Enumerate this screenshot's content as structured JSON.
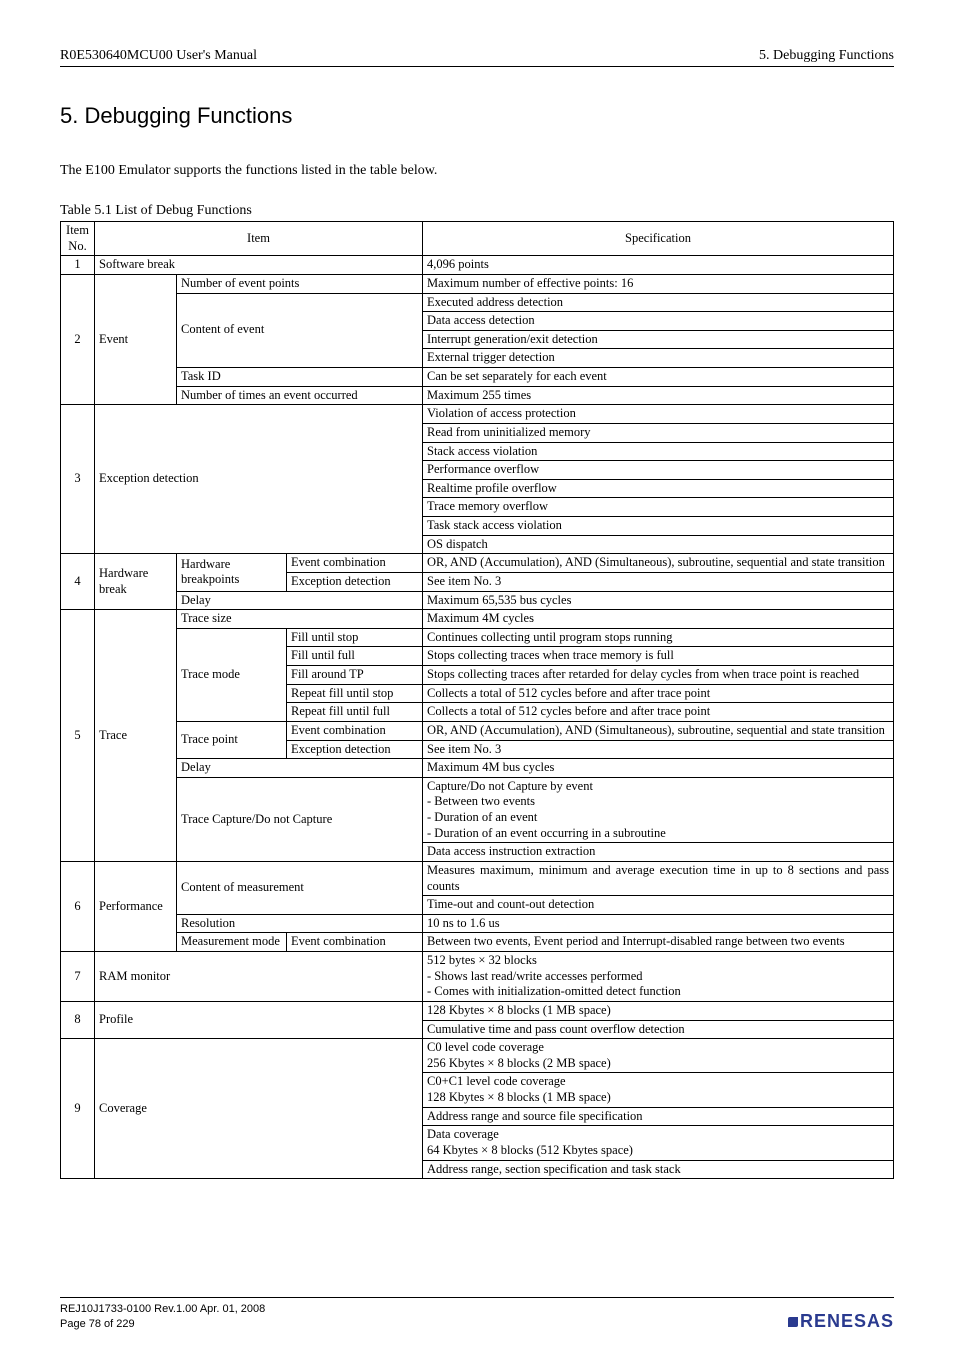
{
  "header": {
    "left": "R0E530640MCU00 User's Manual",
    "right": "5. Debugging Functions"
  },
  "chapter_title": "5. Debugging Functions",
  "intro": "The E100 Emulator supports the functions listed in the table below.",
  "table_caption": "Table 5.1 List of Debug Functions",
  "table_head": {
    "no": "Item No.",
    "item": "Item",
    "spec": "Specification"
  },
  "r1": {
    "no": "1",
    "item": "Software break",
    "spec": "4,096 points"
  },
  "r2": {
    "no": "2",
    "item": "Event",
    "sub1": "Number of event points",
    "sub2": "Content of event",
    "sub3": "Task ID",
    "sub4": "Number of times an event occurred",
    "sp1": "Maximum number of effective points: 16",
    "sp2_1": "Executed address detection",
    "sp2_2": "Data access detection",
    "sp2_3": "Interrupt generation/exit detection",
    "sp2_4": "External trigger detection",
    "sp3": "Can be set separately for each event",
    "sp4": "Maximum 255 times"
  },
  "r3": {
    "no": "3",
    "item": "Exception detection",
    "sp1": "Violation of access protection",
    "sp2": "Read from uninitialized memory",
    "sp3": "Stack access violation",
    "sp4": "Performance overflow",
    "sp5": "Realtime profile overflow",
    "sp6": "Trace memory overflow",
    "sp7": "Task stack access violation",
    "sp8": "OS dispatch"
  },
  "r4": {
    "no": "4",
    "item": "Hardware break",
    "s1": "Hardware breakpoints",
    "s1a": "Event combination",
    "s1b": "Exception detection",
    "s2": "Delay",
    "sp1": "OR, AND (Accumulation), AND (Simultaneous), subroutine, sequential and state transition",
    "sp2": "See item No. 3",
    "sp3": "Maximum 65,535 bus cycles"
  },
  "r5": {
    "no": "5",
    "item": "Trace",
    "s1": "Trace size",
    "sp1": "Maximum 4M cycles",
    "s2": "Trace mode",
    "s2a": "Fill until stop",
    "sp2a": "Continues collecting until program stops running",
    "s2b": "Fill until full",
    "sp2b": "Stops collecting traces when trace memory is full",
    "s2c": "Fill around TP",
    "sp2c": "Stops collecting traces after retarded for delay cycles from when trace point is reached",
    "s2d": "Repeat fill until stop",
    "sp2d": "Collects a total of 512 cycles before and after trace point",
    "s2e": "Repeat fill until full",
    "sp2e": "Collects a total of 512 cycles before and after trace point",
    "s3": "Trace point",
    "s3a": "Event combination",
    "sp3a": "OR, AND (Accumulation), AND (Simultaneous), subroutine, sequential and state transition",
    "s3b": "Exception detection",
    "sp3b": "See item No. 3",
    "s4": "Delay",
    "sp4": "Maximum 4M bus cycles",
    "s5": "Trace Capture/Do not Capture",
    "sp5a": "Capture/Do not Capture by event\n- Between two events\n- Duration of an event\n- Duration of an event occurring in a subroutine",
    "sp5b": "Data access instruction extraction"
  },
  "r6": {
    "no": "6",
    "item": "Performance",
    "s1": "Content of measurement",
    "sp1a": "Measures maximum, minimum and average execution time in up to 8 sections and pass counts",
    "sp1b": "Time-out and count-out detection",
    "s2": "Resolution",
    "sp2": "10 ns to 1.6 us",
    "s3": "Measurement mode",
    "s3a": "Event combination",
    "sp3": "Between two events, Event period and Interrupt-disabled range between two events"
  },
  "r7": {
    "no": "7",
    "item": "RAM monitor",
    "spec": "512 bytes × 32 blocks\n- Shows last read/write accesses performed\n- Comes with initialization-omitted detect function"
  },
  "r8": {
    "no": "8",
    "item": "Profile",
    "sp1": "128 Kbytes × 8 blocks (1 MB space)",
    "sp2": "Cumulative time and pass count overflow detection"
  },
  "r9": {
    "no": "9",
    "item": "Coverage",
    "sp1": "C0 level code coverage\n256 Kbytes × 8 blocks (2 MB space)",
    "sp2": "C0+C1 level code coverage\n128 Kbytes × 8 blocks (1 MB space)",
    "sp3": "Address range and source file specification",
    "sp4": "Data coverage\n64 Kbytes × 8 blocks (512 Kbytes space)",
    "sp5": "Address range, section specification and task stack"
  },
  "footer": {
    "line1": "REJ10J1733-0100   Rev.1.00   Apr. 01, 2008",
    "line2": "Page 78 of 229",
    "logo": "RENESAS"
  }
}
